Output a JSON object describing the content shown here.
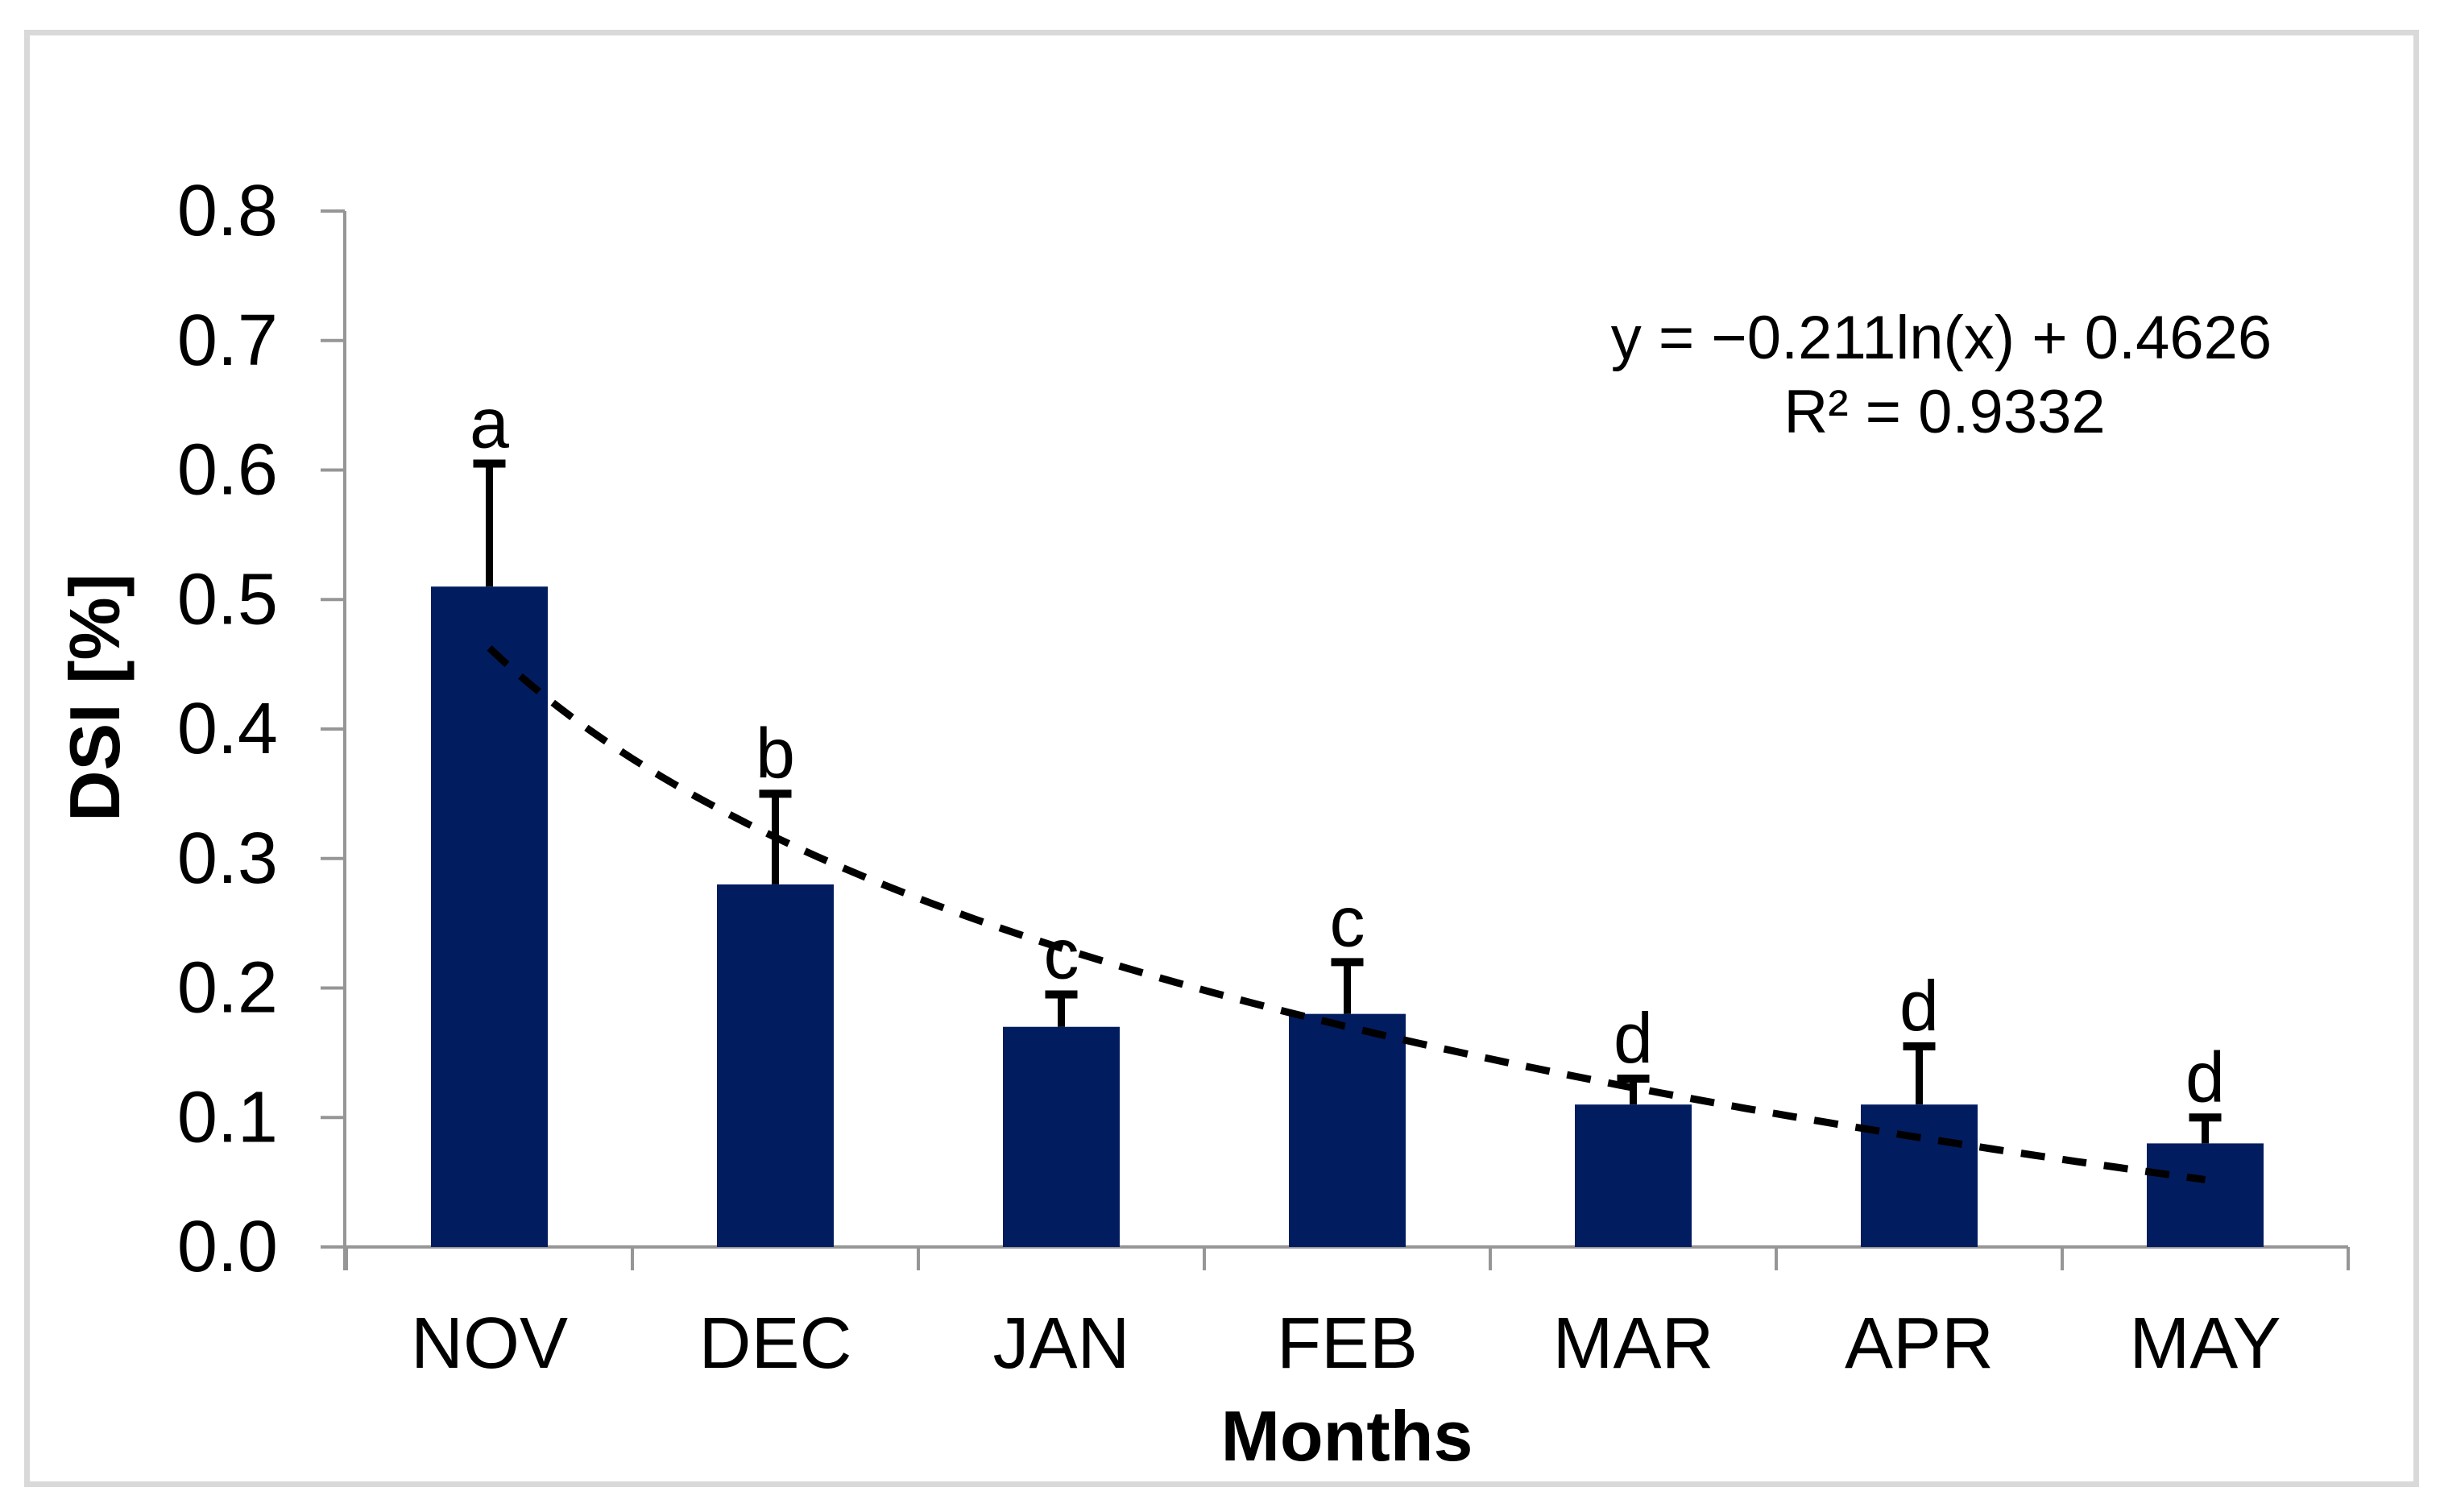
{
  "figure": {
    "background": "#ffffff",
    "border_color": "#d9d9d9"
  },
  "chart_data": {
    "type": "bar",
    "title": "",
    "categories": [
      "NOV",
      "DEC",
      "JAN",
      "FEB",
      "MAR",
      "APR",
      "MAY"
    ],
    "values": [
      0.51,
      0.28,
      0.17,
      0.18,
      0.11,
      0.11,
      0.08
    ],
    "error_up": [
      0.095,
      0.07,
      0.025,
      0.04,
      0.02,
      0.045,
      0.02
    ],
    "sig_letters": [
      "a",
      "b",
      "c",
      "c",
      "d",
      "d",
      "d"
    ],
    "xlabel": "Months",
    "ylabel": "DSI [%]",
    "ylim": [
      0,
      0.8
    ],
    "ytick_step": 0.1,
    "ytick_labels": [
      "0.0",
      "0.1",
      "0.2",
      "0.3",
      "0.4",
      "0.5",
      "0.6",
      "0.7",
      "0.8"
    ],
    "grid": false,
    "legend": "none",
    "bar_color": "#021c60",
    "axis_color": "#969696",
    "text_color": "#000000",
    "trendline": {
      "type": "logarithmic",
      "slope": -0.211,
      "intercept": 0.4626,
      "r2": 0.9332,
      "equation_label": "y = −0.211ln(x) + 0.4626",
      "r2_label": "R² = 0.9332",
      "style": "dashed",
      "color": "#000000"
    }
  }
}
